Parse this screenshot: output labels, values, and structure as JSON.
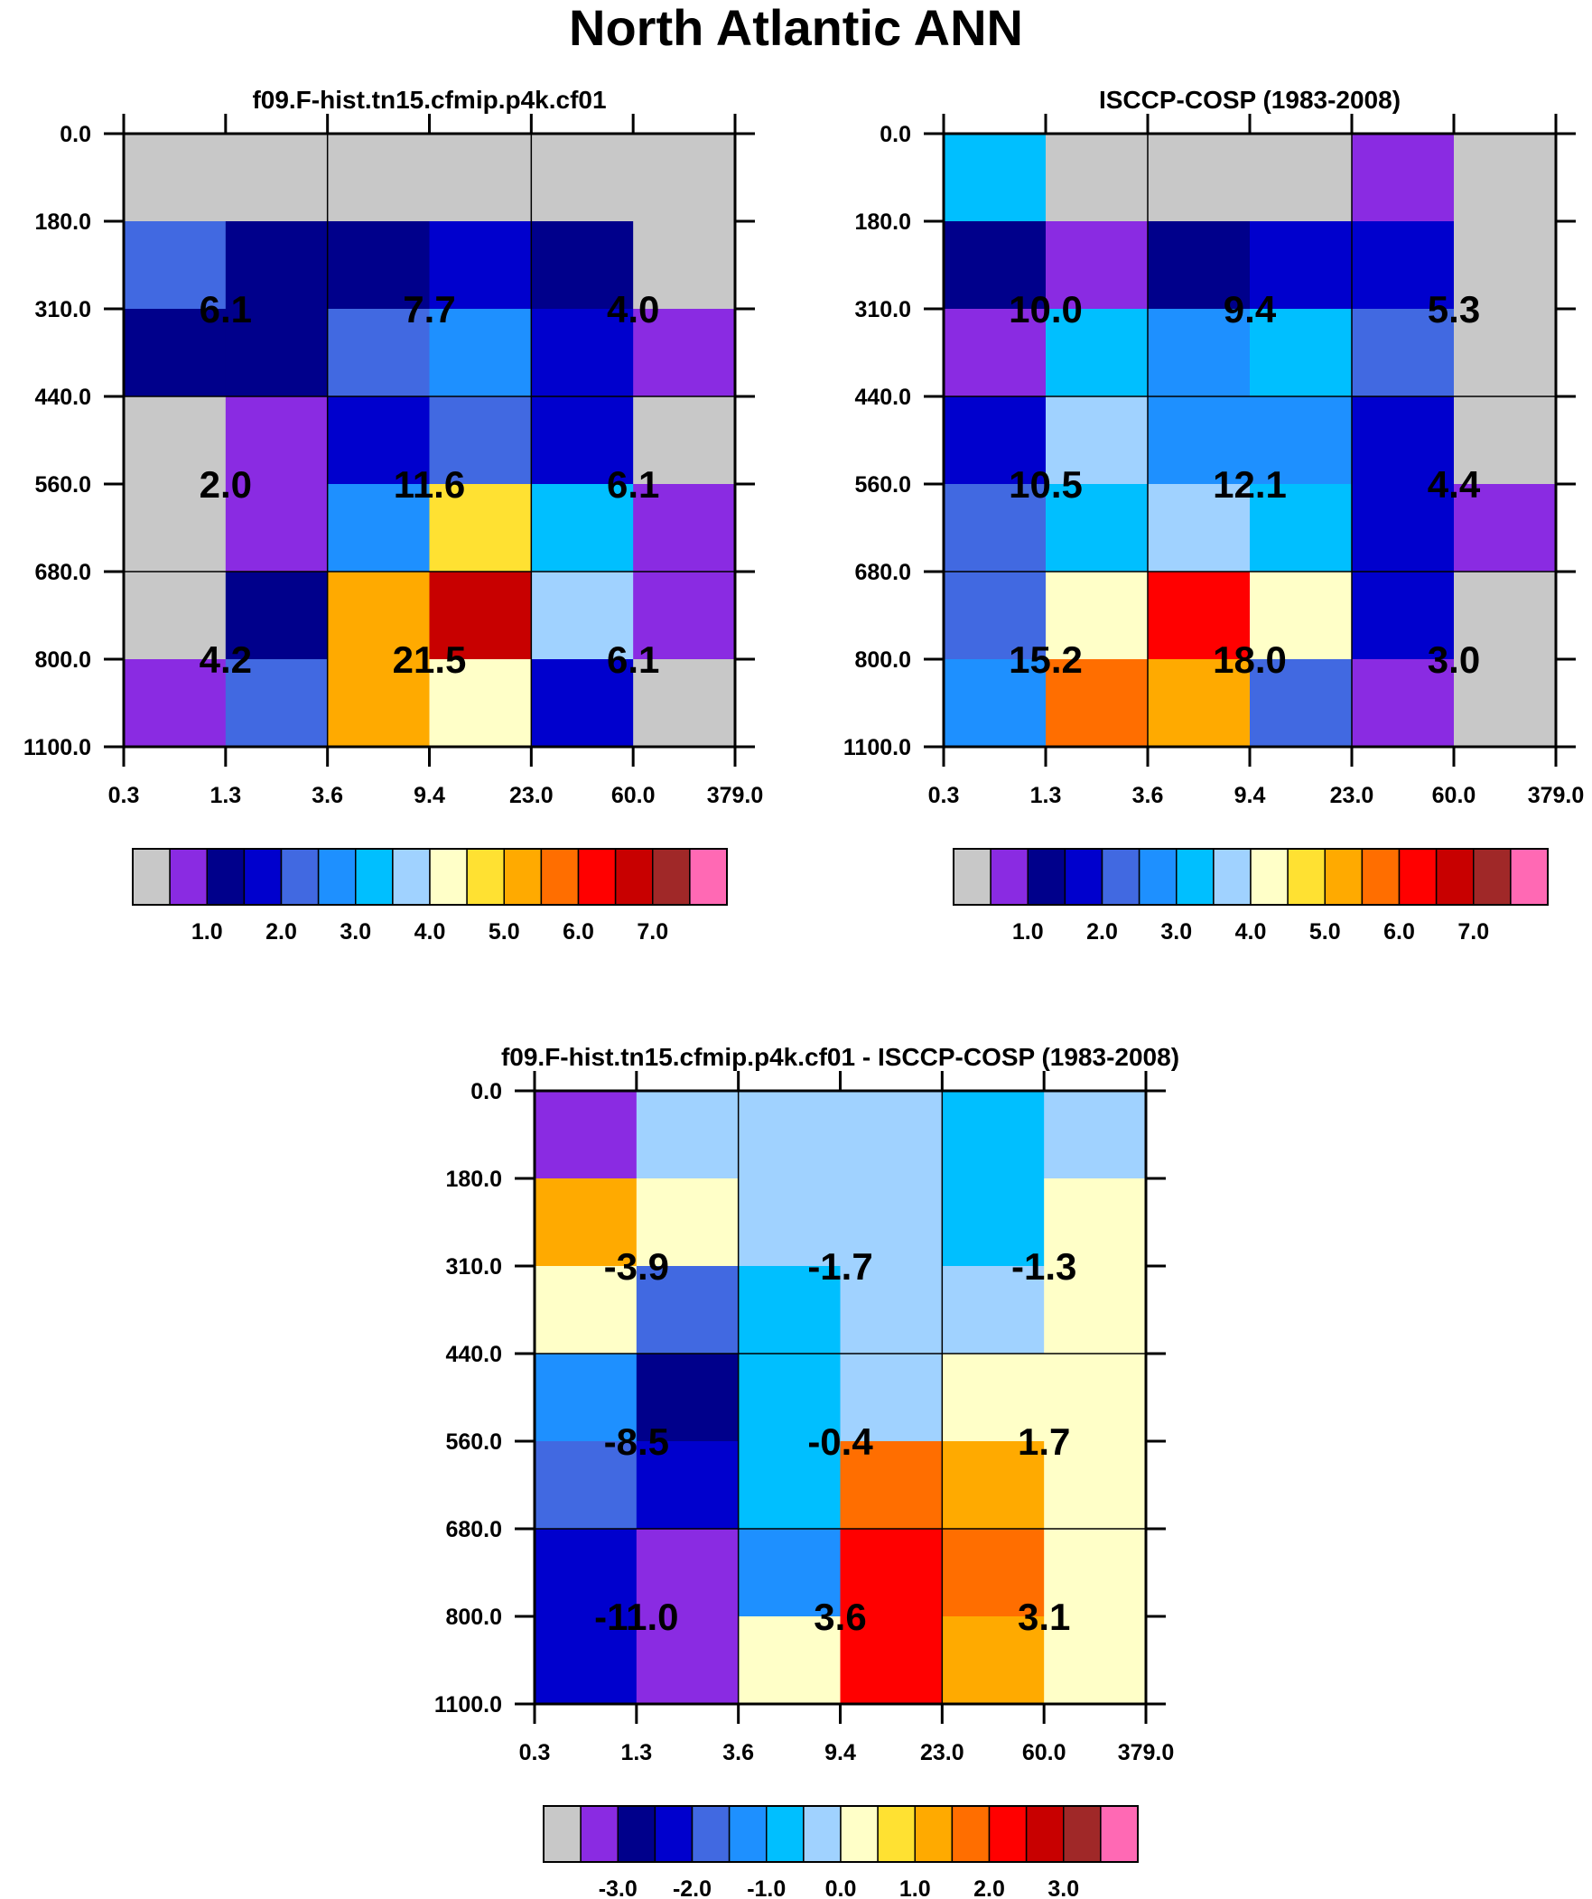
{
  "title": "North Atlantic ANN",
  "palette": [
    "#c8c8c8",
    "#8a2be2",
    "#00008b",
    "#0000cd",
    "#4169e1",
    "#1e90ff",
    "#00bfff",
    "#a0d2ff",
    "#ffffc8",
    "#ffe132",
    "#ffaa00",
    "#ff6e00",
    "#ff0000",
    "#c80000",
    "#a02828",
    "#ff69b4"
  ],
  "chart_data": [
    {
      "type": "heatmap",
      "title": "f09.F-hist.tn15.cfmip.p4k.cf01",
      "x_ticks": [
        "0.3",
        "1.3",
        "3.6",
        "9.4",
        "23.0",
        "60.0",
        "379.0"
      ],
      "y_ticks": [
        "0.0",
        "180.0",
        "310.0",
        "440.0",
        "560.0",
        "680.0",
        "800.0",
        "1100.0"
      ],
      "cells": [
        [
          0,
          0,
          0,
          0,
          0,
          0
        ],
        [
          4,
          2,
          2,
          3,
          2,
          0
        ],
        [
          2,
          2,
          4,
          5,
          3,
          1
        ],
        [
          0,
          1,
          3,
          4,
          3,
          0
        ],
        [
          0,
          1,
          5,
          9,
          6,
          1
        ],
        [
          0,
          2,
          10,
          13,
          7,
          1
        ],
        [
          1,
          4,
          10,
          8,
          3,
          0
        ]
      ],
      "annotations": [
        {
          "col_group": 0,
          "row_group": 0,
          "text": "6.1"
        },
        {
          "col_group": 1,
          "row_group": 0,
          "text": "7.7"
        },
        {
          "col_group": 2,
          "row_group": 0,
          "text": "4.0"
        },
        {
          "col_group": 0,
          "row_group": 1,
          "text": "2.0"
        },
        {
          "col_group": 1,
          "row_group": 1,
          "text": "11.6"
        },
        {
          "col_group": 2,
          "row_group": 1,
          "text": "6.1"
        },
        {
          "col_group": 0,
          "row_group": 2,
          "text": "4.2"
        },
        {
          "col_group": 1,
          "row_group": 2,
          "text": "21.5"
        },
        {
          "col_group": 2,
          "row_group": 2,
          "text": "6.1"
        }
      ],
      "colorbar_labels": [
        "1.0",
        "2.0",
        "3.0",
        "4.0",
        "5.0",
        "6.0",
        "7.0"
      ]
    },
    {
      "type": "heatmap",
      "title": "ISCCP-COSP (1983-2008)",
      "x_ticks": [
        "0.3",
        "1.3",
        "3.6",
        "9.4",
        "23.0",
        "60.0",
        "379.0"
      ],
      "y_ticks": [
        "0.0",
        "180.0",
        "310.0",
        "440.0",
        "560.0",
        "680.0",
        "800.0",
        "1100.0"
      ],
      "cells": [
        [
          6,
          0,
          0,
          0,
          1,
          0
        ],
        [
          2,
          1,
          2,
          3,
          3,
          0
        ],
        [
          1,
          6,
          5,
          6,
          4,
          0
        ],
        [
          3,
          7,
          5,
          5,
          3,
          0
        ],
        [
          4,
          6,
          7,
          6,
          3,
          1
        ],
        [
          4,
          8,
          12,
          8,
          3,
          0
        ],
        [
          5,
          11,
          10,
          4,
          1,
          0
        ]
      ],
      "annotations": [
        {
          "col_group": 0,
          "row_group": 0,
          "text": "10.0"
        },
        {
          "col_group": 1,
          "row_group": 0,
          "text": "9.4"
        },
        {
          "col_group": 2,
          "row_group": 0,
          "text": "5.3"
        },
        {
          "col_group": 0,
          "row_group": 1,
          "text": "10.5"
        },
        {
          "col_group": 1,
          "row_group": 1,
          "text": "12.1"
        },
        {
          "col_group": 2,
          "row_group": 1,
          "text": "4.4"
        },
        {
          "col_group": 0,
          "row_group": 2,
          "text": "15.2"
        },
        {
          "col_group": 1,
          "row_group": 2,
          "text": "18.0"
        },
        {
          "col_group": 2,
          "row_group": 2,
          "text": "3.0"
        }
      ],
      "colorbar_labels": [
        "1.0",
        "2.0",
        "3.0",
        "4.0",
        "5.0",
        "6.0",
        "7.0"
      ]
    },
    {
      "type": "heatmap",
      "title": "f09.F-hist.tn15.cfmip.p4k.cf01 - ISCCP-COSP (1983-2008)",
      "x_ticks": [
        "0.3",
        "1.3",
        "3.6",
        "9.4",
        "23.0",
        "60.0",
        "379.0"
      ],
      "y_ticks": [
        "0.0",
        "180.0",
        "310.0",
        "440.0",
        "560.0",
        "680.0",
        "800.0",
        "1100.0"
      ],
      "cells": [
        [
          1,
          7,
          7,
          7,
          6,
          7
        ],
        [
          10,
          8,
          7,
          7,
          6,
          8
        ],
        [
          8,
          4,
          6,
          7,
          7,
          8
        ],
        [
          5,
          2,
          6,
          7,
          8,
          8
        ],
        [
          4,
          3,
          6,
          11,
          10,
          8
        ],
        [
          3,
          1,
          5,
          12,
          11,
          8
        ],
        [
          3,
          1,
          8,
          12,
          10,
          8
        ]
      ],
      "annotations": [
        {
          "col_group": 0,
          "row_group": 0,
          "text": "-3.9"
        },
        {
          "col_group": 1,
          "row_group": 0,
          "text": "-1.7"
        },
        {
          "col_group": 2,
          "row_group": 0,
          "text": "-1.3"
        },
        {
          "col_group": 0,
          "row_group": 1,
          "text": "-8.5"
        },
        {
          "col_group": 1,
          "row_group": 1,
          "text": "-0.4"
        },
        {
          "col_group": 2,
          "row_group": 1,
          "text": "1.7"
        },
        {
          "col_group": 0,
          "row_group": 2,
          "text": "-11.0"
        },
        {
          "col_group": 1,
          "row_group": 2,
          "text": "3.6"
        },
        {
          "col_group": 2,
          "row_group": 2,
          "text": "3.1"
        }
      ],
      "colorbar_labels": [
        "-3.0",
        "-2.0",
        "-1.0",
        "0.0",
        "1.0",
        "2.0",
        "3.0"
      ]
    }
  ]
}
